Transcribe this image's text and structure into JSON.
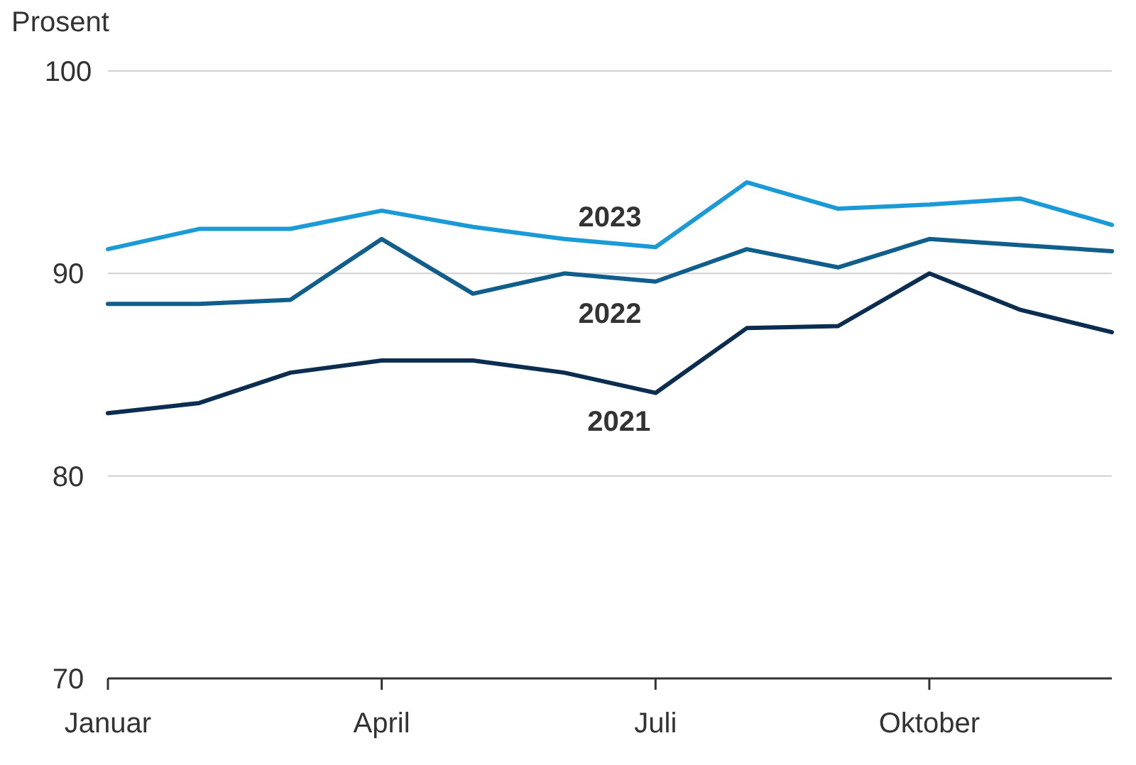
{
  "chart_data": {
    "type": "line",
    "ylabel": "Prosent",
    "categories": [
      "Januar",
      null,
      null,
      "April",
      null,
      null,
      "Juli",
      null,
      null,
      "Oktober",
      null,
      null
    ],
    "series": [
      {
        "name": "2023",
        "color": "#1a9bd7",
        "values": [
          91.2,
          92.2,
          92.2,
          93.1,
          92.3,
          91.7,
          91.3,
          94.5,
          93.2,
          93.4,
          93.7,
          92.4
        ]
      },
      {
        "name": "2022",
        "color": "#0f5e8c",
        "values": [
          88.5,
          88.5,
          88.7,
          91.7,
          89.0,
          90.0,
          89.6,
          91.2,
          90.3,
          91.7,
          91.4,
          91.1
        ]
      },
      {
        "name": "2021",
        "color": "#0b2d4f",
        "values": [
          83.1,
          83.6,
          85.1,
          85.7,
          85.7,
          85.1,
          84.1,
          87.3,
          87.4,
          90.0,
          88.2,
          87.1
        ]
      }
    ],
    "ylim": [
      70,
      100
    ],
    "yticks": [
      70,
      80,
      90,
      100
    ],
    "grid": "y",
    "marker": "none",
    "line_style": "solid"
  }
}
